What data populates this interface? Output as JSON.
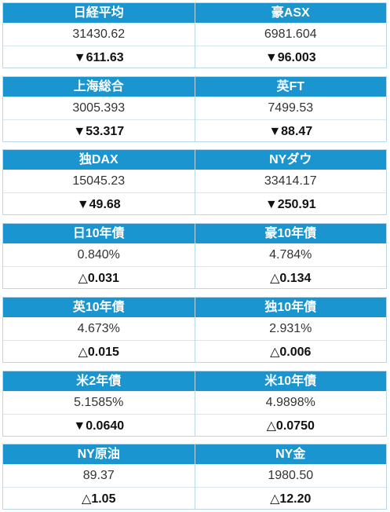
{
  "groups": [
    [
      {
        "name": "日経平均",
        "value": "31430.62",
        "change": "▼611.63"
      },
      {
        "name": "豪ASX",
        "value": "6981.604",
        "change": "▼96.003"
      }
    ],
    [
      {
        "name": "上海総合",
        "value": "3005.393",
        "change": "▼53.317"
      },
      {
        "name": "英FT",
        "value": "7499.53",
        "change": "▼88.47"
      }
    ],
    [
      {
        "name": "独DAX",
        "value": "15045.23",
        "change": "▼49.68"
      },
      {
        "name": "NYダウ",
        "value": "33414.17",
        "change": "▼250.91"
      }
    ],
    [
      {
        "name": "日10年債",
        "value": "0.840%",
        "change": "△0.031"
      },
      {
        "name": "豪10年債",
        "value": "4.784%",
        "change": "△0.134"
      }
    ],
    [
      {
        "name": "英10年債",
        "value": "4.673%",
        "change": "△0.015"
      },
      {
        "name": "独10年債",
        "value": "2.931%",
        "change": "△0.006"
      }
    ],
    [
      {
        "name": "米2年債",
        "value": "5.1585%",
        "change": "▼0.0640"
      },
      {
        "name": "米10年債",
        "value": "4.9898%",
        "change": "△0.0750"
      }
    ],
    [
      {
        "name": "NY原油",
        "value": "89.37",
        "change": "△1.05"
      },
      {
        "name": "NY金",
        "value": "1980.50",
        "change": "△12.20"
      }
    ]
  ]
}
